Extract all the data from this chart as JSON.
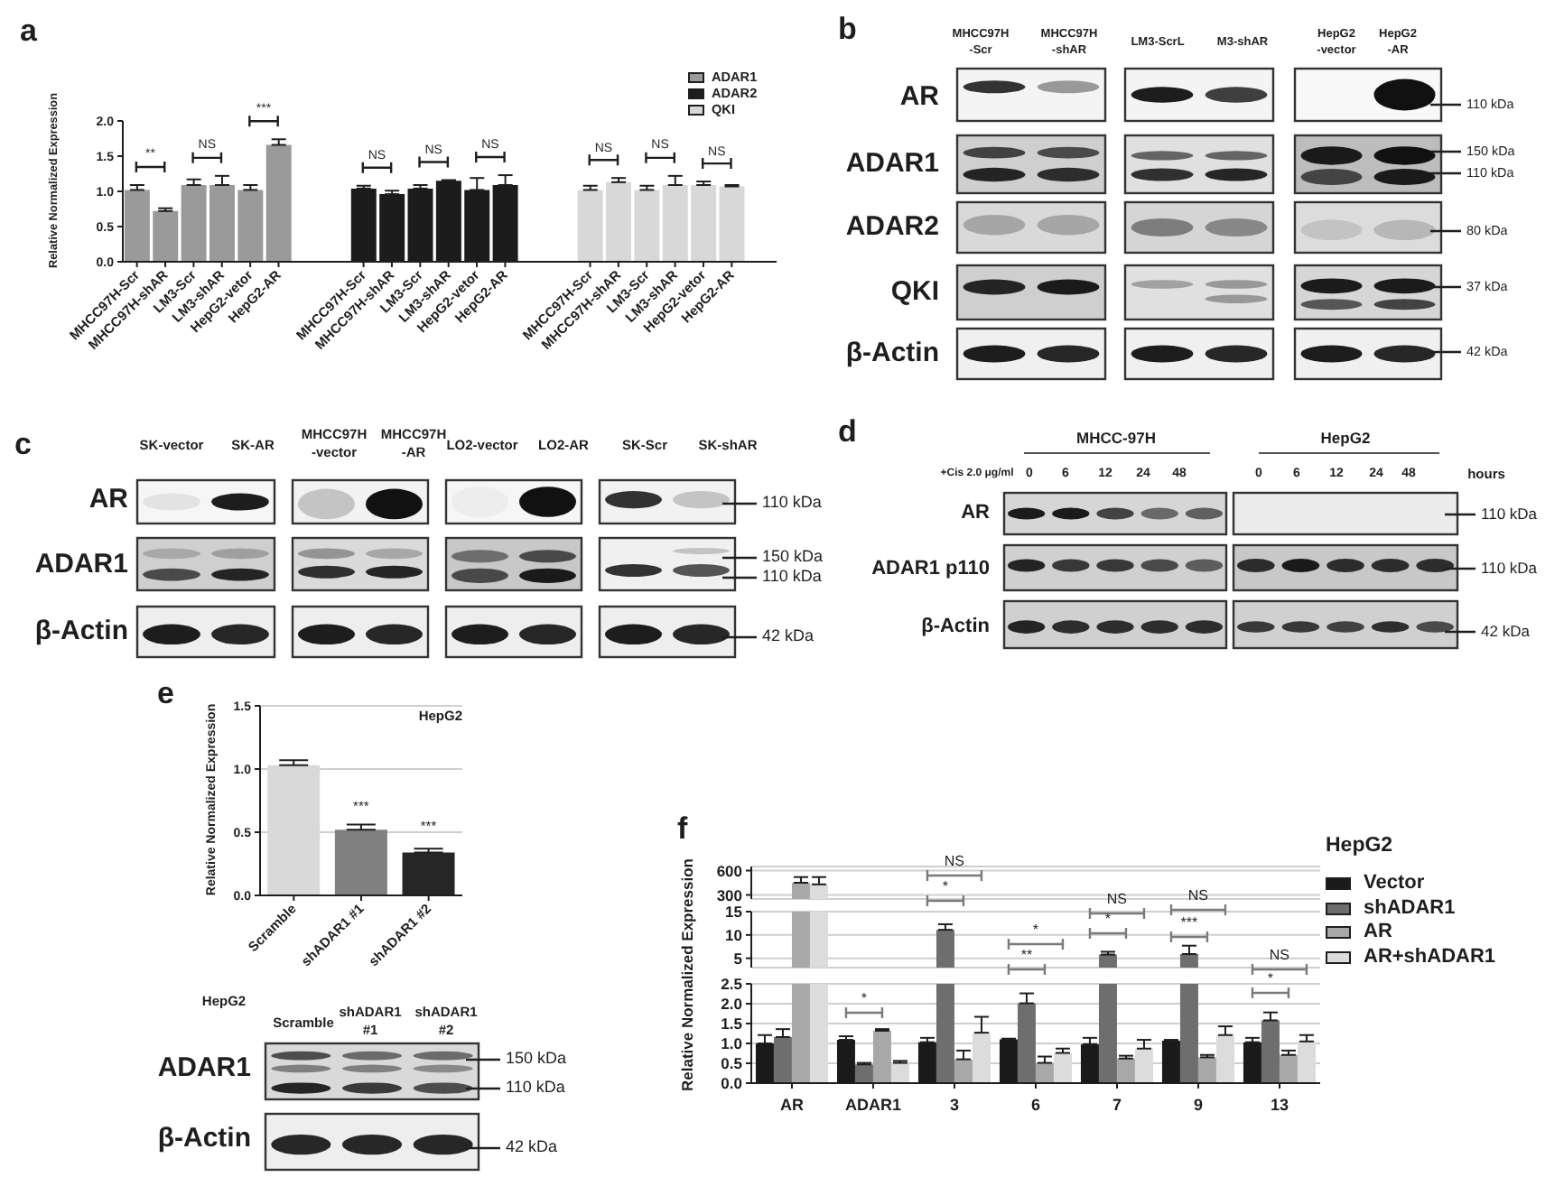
{
  "chart_data": [
    {
      "type": "bar",
      "title": "a",
      "ylabel": "Relative Normalized Expression",
      "categories": [
        "MHCC97H-Scr",
        "MHCC97H-shAR",
        "LM3-Scr",
        "LM3-shAR",
        "HepG2-vetor",
        "HepG2-AR",
        null,
        null,
        "MHCC97H-Scr",
        "MHCC97H-shAR",
        "LM3-Scr",
        "LM3-shAR",
        "HepG2-vetor",
        "HepG2-AR",
        null,
        null,
        "MHCC97H-Scr",
        "MHCC97H-shAR",
        "LM3-Scr",
        "LM3-shAR",
        "HepG2-vetor",
        "HepG2-AR"
      ],
      "stacked": true,
      "series": [
        {
          "name": "ADAR1",
          "color": "#9a9a9a",
          "values": [
            1.02,
            0.72,
            1.09,
            1.09,
            1.02,
            1.66,
            null,
            null,
            null,
            null,
            null,
            null,
            null,
            null,
            null,
            null,
            null,
            null,
            null,
            null,
            null,
            null
          ],
          "errors": [
            [
              1.02,
              1.09
            ],
            [
              0.72,
              0.76
            ],
            [
              1.09,
              1.17
            ],
            [
              1.09,
              1.22
            ],
            [
              1.02,
              1.09
            ],
            [
              1.66,
              1.74
            ],
            null,
            null,
            null,
            null,
            null,
            null,
            null,
            null,
            null,
            null,
            null,
            null,
            null,
            null,
            null,
            null
          ]
        },
        {
          "name": "ADAR2",
          "color": "#1c1c1c",
          "values": [
            null,
            null,
            null,
            null,
            null,
            null,
            null,
            null,
            1.04,
            0.96,
            1.04,
            1.15,
            1.02,
            1.09,
            null,
            null,
            null,
            null,
            null,
            null,
            null,
            null
          ],
          "errors": [
            null,
            null,
            null,
            null,
            null,
            null,
            null,
            null,
            [
              1.04,
              1.08
            ],
            [
              0.96,
              1.01
            ],
            [
              1.04,
              1.09
            ],
            [
              1.15,
              1.16
            ],
            [
              1.02,
              1.19
            ],
            [
              1.09,
              1.23
            ],
            null,
            null,
            null,
            null,
            null,
            null,
            null,
            null
          ]
        },
        {
          "name": "QKI",
          "color": "#d8d8d8",
          "values": [
            null,
            null,
            null,
            null,
            null,
            null,
            null,
            null,
            null,
            null,
            null,
            null,
            null,
            null,
            null,
            null,
            1.02,
            1.13,
            1.02,
            1.09,
            1.09,
            1.07
          ],
          "errors": [
            null,
            null,
            null,
            null,
            null,
            null,
            null,
            null,
            null,
            null,
            null,
            null,
            null,
            null,
            null,
            null,
            [
              1.02,
              1.08
            ],
            [
              1.13,
              1.19
            ],
            [
              1.02,
              1.08
            ],
            [
              1.09,
              1.22
            ],
            [
              1.09,
              1.14
            ],
            [
              1.07,
              1.09
            ]
          ]
        }
      ],
      "ylim": [
        0,
        2
      ],
      "yticks": [
        {
          "value": 0,
          "label": "0.0"
        },
        {
          "value": 0.5,
          "label": "0.5"
        },
        {
          "value": 1,
          "label": "1.0"
        },
        {
          "value": 1.5,
          "label": "1.5"
        },
        {
          "value": 2,
          "label": "2.0"
        }
      ],
      "legend": "top right",
      "annotations": [
        "**",
        "NS",
        "***",
        "NS",
        "NS",
        "NS",
        "NS",
        "NS",
        "NS"
      ]
    },
    {
      "type": "other",
      "title": "b",
      "annotations": [
        "MHCC97H\n-Scr",
        "MHCC97H\n-shAR",
        "LM3-ScrL",
        "M3-shAR",
        "HepG2\n-vector",
        "HepG2\n-AR",
        "AR",
        "ADAR1",
        "ADAR2",
        "QKI",
        "β-Actin",
        "110 kDa",
        "150 kDa",
        "110 kDa",
        "80 kDa",
        "37 kDa",
        "42 kDa"
      ]
    },
    {
      "type": "other",
      "title": "c",
      "annotations": [
        "SK-vector",
        "SK-AR",
        "MHCC97H\n-vector",
        "MHCC97H\n-AR",
        "LO2-vector",
        "LO2-AR",
        "SK-Scr",
        "SK-shAR",
        "AR",
        "ADAR1",
        "β-Actin",
        "110 kDa",
        "150 kDa",
        "110 kDa",
        "42 kDa"
      ]
    },
    {
      "type": "other",
      "title": "d",
      "annotations": [
        "MHCC-97H",
        "HepG2",
        "+Cis 2.0 μg/ml",
        "0",
        "6",
        "12",
        "24",
        "48",
        "0",
        "6",
        "12",
        "24",
        "48",
        "hours",
        "AR",
        "ADAR1 p110",
        "β-Actin",
        "110 kDa",
        "110 kDa",
        "42 kDa"
      ]
    },
    {
      "type": "bar",
      "title": "e",
      "subtitle": "HepG2",
      "ylabel": "Relative Normalized Expression",
      "categories": [
        "Scramble",
        "shADAR1 #1",
        "shADAR1 #2"
      ],
      "values": [
        1.03,
        0.52,
        0.34
      ],
      "colors": [
        "#d9d9d9",
        "#808080",
        "#262626"
      ],
      "errors": [
        [
          1.03,
          1.07
        ],
        [
          0.52,
          0.56
        ],
        [
          0.34,
          0.37
        ]
      ],
      "ylim": [
        0,
        1.5
      ],
      "yticks": [
        {
          "value": 0,
          "label": "0.0"
        },
        {
          "value": 0.5,
          "label": "0.5"
        },
        {
          "value": 1,
          "label": "1.0"
        },
        {
          "value": 1.5,
          "label": "1.5"
        }
      ],
      "grid": "y",
      "annotations": [
        "***",
        "***"
      ]
    },
    {
      "type": "other",
      "annotations": [
        "HepG2",
        "Scramble",
        "shADAR1\n#1",
        "shADAR1\n#2",
        "ADAR1",
        "β-Actin",
        "150 kDa",
        "110 kDa",
        "42 kDa"
      ]
    },
    {
      "type": "bar",
      "title": "f",
      "categories": [
        null,
        null,
        null,
        null,
        null,
        null,
        null
      ],
      "series": [
        {
          "name": "Vector",
          "color": "#1a1a1a",
          "values": [
            null,
            null,
            null,
            null,
            null,
            null,
            null
          ]
        },
        {
          "name": "shADAR1",
          "color": "#6e6e6e",
          "values": [
            null,
            null,
            null,
            null,
            null,
            null,
            null
          ]
        },
        {
          "name": "AR",
          "color": "#a8a8a8",
          "values": [
            450,
            null,
            null,
            null,
            null,
            null,
            null
          ],
          "errors": [
            [
              450,
              520
            ],
            null,
            null,
            null,
            null,
            null,
            null
          ]
        },
        {
          "name": "AR+shADAR1",
          "color": "#dcdcdc",
          "values": [
            430,
            null,
            null,
            null,
            null,
            null,
            null
          ],
          "errors": [
            [
              430,
              520
            ],
            null,
            null,
            null,
            null,
            null,
            null
          ]
        }
      ],
      "ylim": [
        250,
        650
      ],
      "yticks": [
        300,
        600
      ],
      "grid": "y",
      "tick_labels": "y",
      "legend": "right",
      "legend_title": "HepG2",
      "annotations": [
        "NS"
      ]
    },
    {
      "type": "bar",
      "ylabel": "Relative Normalized Expression",
      "categories": [
        null,
        null,
        null,
        null,
        null,
        null,
        null
      ],
      "series": [
        {
          "color": "#1a1a1a",
          "values": [
            null,
            null,
            null,
            null,
            null,
            null,
            null
          ]
        },
        {
          "color": "#6e6e6e",
          "values": [
            null,
            null,
            11.1,
            null,
            5.8,
            5.9,
            null
          ],
          "errors": [
            null,
            null,
            [
              11.1,
              12.3
            ],
            null,
            [
              5.8,
              6.4
            ],
            [
              5.9,
              7.7
            ],
            null
          ]
        },
        {
          "color": "#a8a8a8",
          "values": [
            15,
            null,
            null,
            null,
            null,
            null,
            null
          ]
        },
        {
          "color": "#dcdcdc",
          "values": [
            15,
            null,
            null,
            null,
            null,
            null,
            null
          ]
        }
      ],
      "ylim": [
        3,
        15
      ],
      "yticks": [
        5,
        10,
        15
      ],
      "grid": "y",
      "tick_labels": "y",
      "annotations": [
        "*",
        "*",
        "*",
        "NS",
        "***",
        "NS"
      ]
    },
    {
      "type": "bar",
      "categories": [
        "AR",
        "ADAR1",
        "3",
        "6",
        "7",
        "9",
        "13"
      ],
      "series": [
        {
          "color": "#1a1a1a",
          "values": [
            1.0,
            1.09,
            1.03,
            1.1,
            0.98,
            1.07,
            1.03
          ],
          "errors": [
            [
              1.0,
              1.21
            ],
            [
              1.09,
              1.18
            ],
            [
              1.03,
              1.14
            ],
            [
              1.1,
              1.12
            ],
            [
              0.98,
              1.14
            ],
            [
              1.07,
              1.09
            ],
            [
              1.03,
              1.14
            ]
          ]
        },
        {
          "color": "#6e6e6e",
          "values": [
            1.16,
            0.47,
            2.5,
            2.01,
            2.5,
            2.5,
            1.58
          ],
          "errors": [
            [
              1.16,
              1.36
            ],
            [
              0.47,
              0.51
            ],
            null,
            [
              2.01,
              2.26
            ],
            null,
            null,
            [
              1.58,
              1.78
            ]
          ]
        },
        {
          "color": "#a8a8a8",
          "values": [
            2.5,
            1.32,
            0.6,
            0.51,
            0.62,
            0.65,
            0.71
          ],
          "errors": [
            null,
            [
              1.32,
              1.36
            ],
            [
              0.6,
              0.82
            ],
            [
              0.51,
              0.67
            ],
            [
              0.62,
              0.69
            ],
            [
              0.65,
              0.71
            ],
            [
              0.71,
              0.82
            ]
          ]
        },
        {
          "color": "#dcdcdc",
          "values": [
            2.5,
            0.51,
            1.27,
            0.76,
            0.87,
            1.21,
            1.05
          ],
          "errors": [
            null,
            [
              0.51,
              0.56
            ],
            [
              1.27,
              1.67
            ],
            [
              0.76,
              0.87
            ],
            [
              0.87,
              1.09
            ],
            [
              1.21,
              1.43
            ],
            [
              1.05,
              1.21
            ]
          ]
        }
      ],
      "ylim": [
        0,
        2.5
      ],
      "yticks": [
        {
          "value": 0,
          "label": "0.0"
        },
        {
          "value": 0.5,
          "label": "0.5"
        },
        {
          "value": 1,
          "label": "1.0"
        },
        {
          "value": 1.5,
          "label": "1.5"
        },
        {
          "value": 2,
          "label": "2.0"
        },
        {
          "value": 2.5,
          "label": "2.5"
        }
      ],
      "grid": "y",
      "annotations": [
        "*",
        "**",
        "*",
        "NS"
      ]
    }
  ]
}
